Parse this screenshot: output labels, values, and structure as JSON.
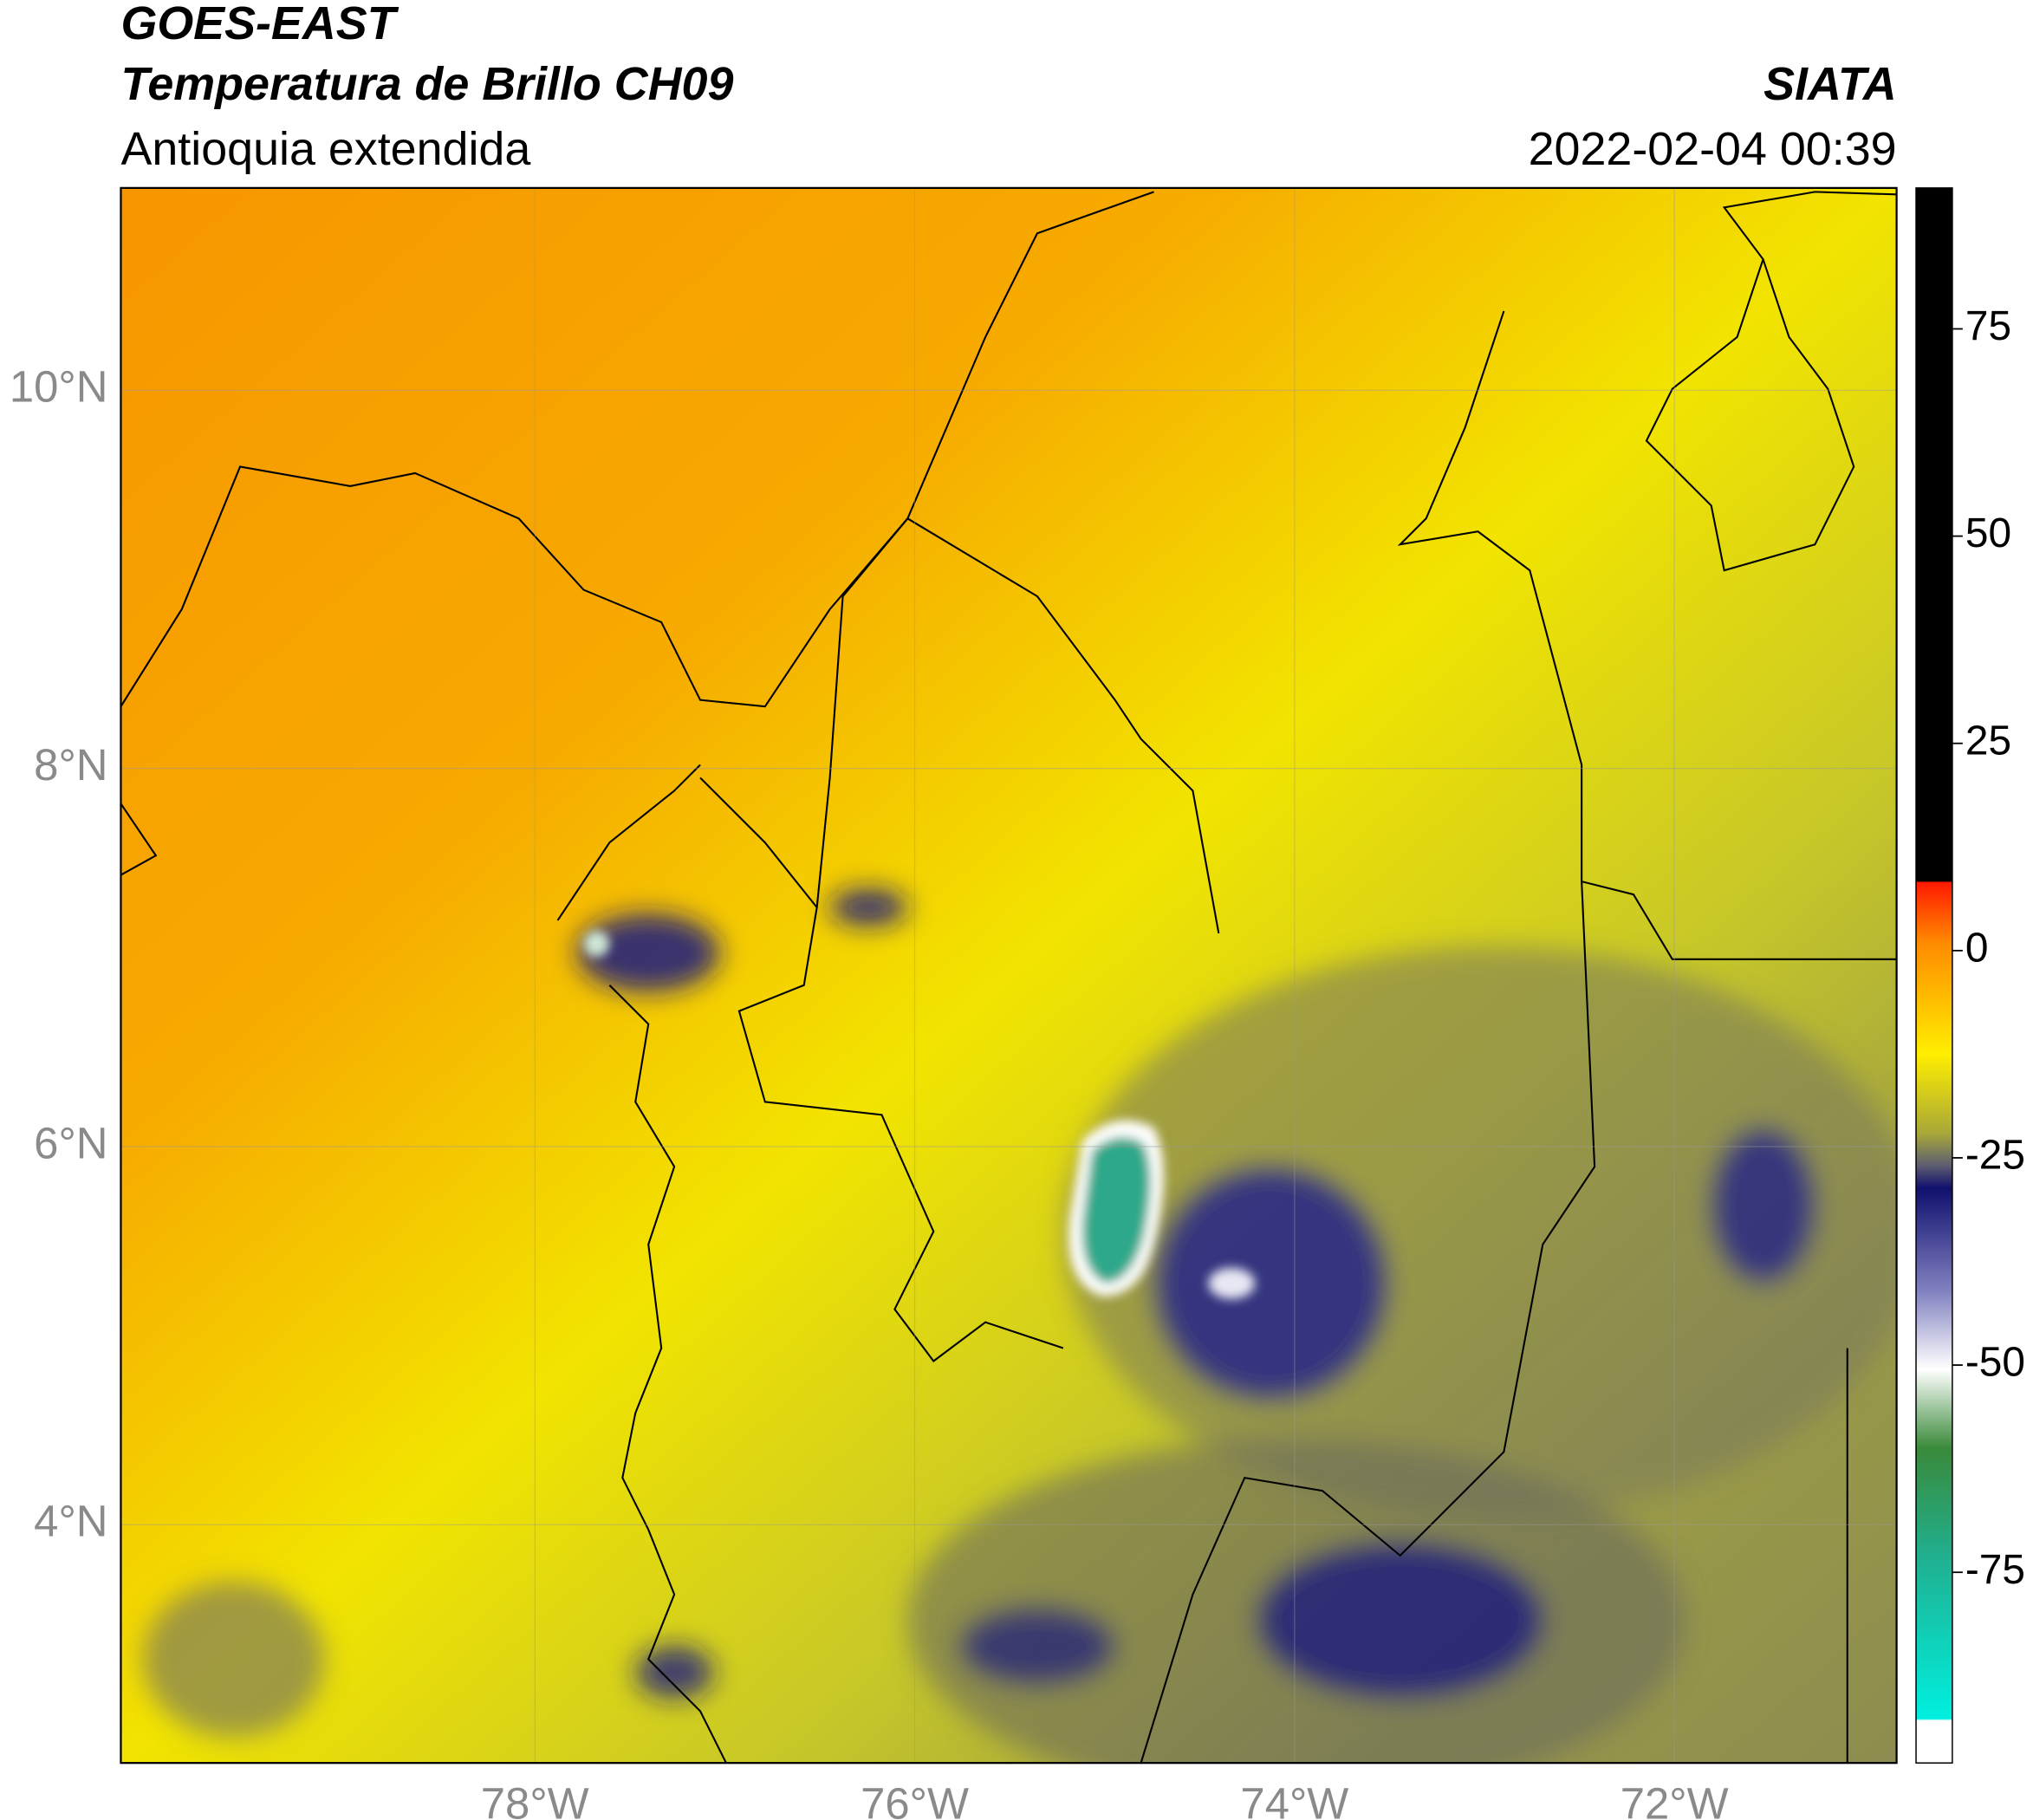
{
  "header": {
    "title": "GOES-EAST",
    "subtitle": "Temperatura de Brillo CH09",
    "region": "Antioquia extendida",
    "source": "SIATA",
    "timestamp": "2022-02-04 00:39"
  },
  "map": {
    "xlim": [
      -80.18,
      -70.83
    ],
    "ylim": [
      2.74,
      11.07
    ],
    "xticks": [
      {
        "value": -78,
        "label": "78°W"
      },
      {
        "value": -76,
        "label": "76°W"
      },
      {
        "value": -74,
        "label": "74°W"
      },
      {
        "value": -72,
        "label": "72°W"
      }
    ],
    "yticks": [
      {
        "value": 10,
        "label": "10°N"
      },
      {
        "value": 8,
        "label": "8°N"
      },
      {
        "value": 6,
        "label": "6°N"
      },
      {
        "value": 4,
        "label": "4°N"
      }
    ]
  },
  "colorbar": {
    "lim": [
      -98,
      92
    ],
    "ticks": [
      75,
      50,
      25,
      0,
      -25,
      -50,
      -75
    ]
  }
}
